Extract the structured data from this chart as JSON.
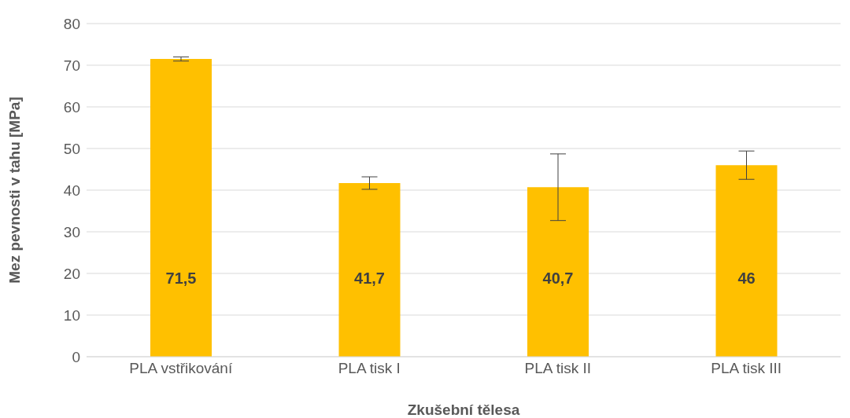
{
  "chart_data": {
    "type": "bar",
    "ylabel": "Mez pevnosti v tahu [MPa]",
    "xlabel": "Zkušební tělesa",
    "categories": [
      "PLA vstřikování",
      "PLA tisk I",
      "PLA tisk II",
      "PLA tisk III"
    ],
    "values": [
      71.5,
      41.7,
      40.7,
      46
    ],
    "value_labels": [
      "71,5",
      "41,7",
      "40,7",
      "46"
    ],
    "errors": [
      0.5,
      1.5,
      8,
      3.4
    ],
    "color": "#ffc000",
    "ylim": [
      0,
      80
    ],
    "yticks": [
      0,
      10,
      20,
      30,
      40,
      50,
      60,
      70,
      80
    ],
    "grid": "y"
  }
}
